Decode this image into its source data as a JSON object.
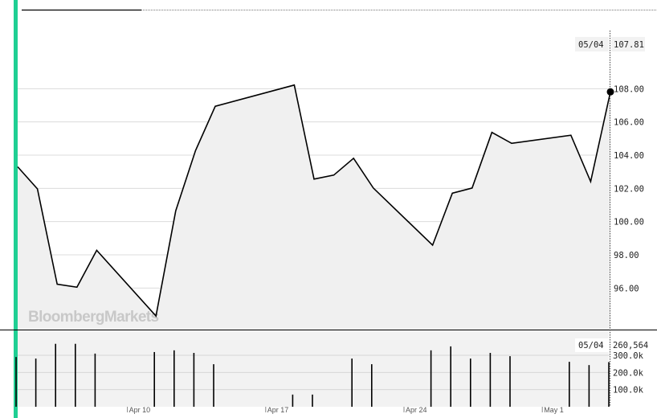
{
  "brand": {
    "logo_text": "BloombergMarkets",
    "accent_color": "#1fcf93"
  },
  "chart_data": [
    {
      "type": "area",
      "panel": "price",
      "x": [
        "2018-04-04",
        "2018-04-05",
        "2018-04-06",
        "2018-04-07",
        "2018-04-08",
        "2018-04-11",
        "2018-04-12",
        "2018-04-13",
        "2018-04-14",
        "2018-04-18",
        "2018-04-19",
        "2018-04-20",
        "2018-04-21",
        "2018-04-22",
        "2018-04-25",
        "2018-04-26",
        "2018-04-27",
        "2018-04-28",
        "2018-04-29",
        "2018-05-02",
        "2018-05-03",
        "2018-05-04"
      ],
      "values": [
        103.3,
        101.97,
        96.23,
        96.05,
        98.27,
        94.32,
        100.65,
        104.27,
        106.94,
        108.22,
        102.56,
        102.8,
        103.81,
        102.02,
        98.58,
        101.71,
        102.02,
        105.37,
        104.71,
        105.2,
        102.41,
        107.81
      ],
      "yticks": [
        "96.00",
        "98.00",
        "100.00",
        "102.00",
        "104.00",
        "106.00",
        "108.00"
      ],
      "ylim": [
        93.5,
        111.5
      ],
      "grid": true,
      "line_color": "#000000",
      "fill_color": "#f0f0f0",
      "crosshair": {
        "date_label": "05/04",
        "value_label": "107.81"
      }
    },
    {
      "type": "bar",
      "panel": "volume",
      "x": [
        "2018-04-04",
        "2018-04-05",
        "2018-04-06",
        "2018-04-07",
        "2018-04-08",
        "2018-04-11",
        "2018-04-12",
        "2018-04-13",
        "2018-04-14",
        "2018-04-18",
        "2018-04-19",
        "2018-04-20",
        "2018-04-21",
        "2018-04-22",
        "2018-04-25",
        "2018-04-26",
        "2018-04-27",
        "2018-04-28",
        "2018-04-29",
        "2018-05-02",
        "2018-05-03",
        "2018-05-04"
      ],
      "values": [
        290000,
        281000,
        367000,
        367000,
        310000,
        319000,
        329000,
        314000,
        248000,
        71000,
        71000,
        0,
        281000,
        248000,
        329000,
        352000,
        281000,
        314000,
        295000,
        262000,
        243000,
        260564
      ],
      "yticks": [
        "100.0k",
        "200.0k",
        "300.0k"
      ],
      "ylim": [
        0,
        450000
      ],
      "grid": true,
      "crosshair": {
        "date_label": "05/04",
        "value_label": "260,564"
      }
    }
  ],
  "xaxis": {
    "tick_labels": [
      "Apr 10",
      "Apr 17",
      "Apr 24",
      "May 1"
    ],
    "tick_dates": [
      "2018-04-10",
      "2018-04-17",
      "2018-04-24",
      "2018-05-01"
    ]
  }
}
